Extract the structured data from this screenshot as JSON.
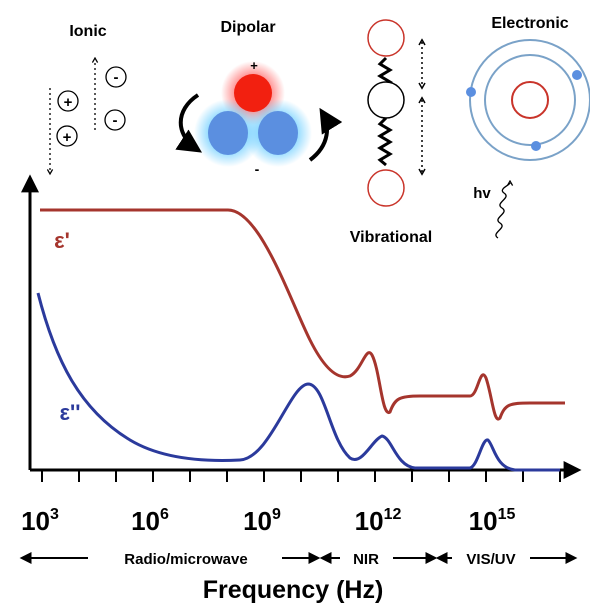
{
  "mechanisms": {
    "ionic": "Ionic",
    "dipolar": "Dipolar",
    "vibrational": "Vibrational",
    "electronic": "Electronic",
    "photon": "hv",
    "plus": "+",
    "minus": "-",
    "ion_plus": "+",
    "ion_minus": "-"
  },
  "curves": {
    "real": "ε'",
    "imaginary": "ε''"
  },
  "x_ticks": [
    {
      "base": "10",
      "exp": "3"
    },
    {
      "base": "10",
      "exp": "6"
    },
    {
      "base": "10",
      "exp": "9"
    },
    {
      "base": "10",
      "exp": "12"
    },
    {
      "base": "10",
      "exp": "15"
    }
  ],
  "regions": [
    "Radio/microwave",
    "NIR",
    "VIS/UV"
  ],
  "x_axis_title": "Frequency (Hz)"
}
